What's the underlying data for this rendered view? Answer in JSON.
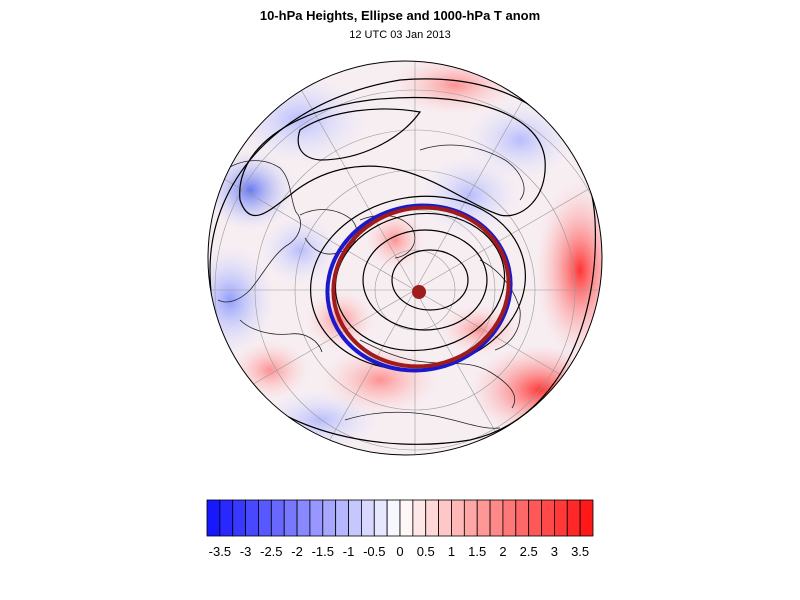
{
  "title": "10-hPa Heights, Ellipse and 1000-hPa T anom",
  "subtitle": "12 UTC 03 Jan 2013",
  "colors": {
    "ellipse_outer": "#1a1acc",
    "ellipse_inner": "#a01c1c",
    "center_marker": "#a01c1c",
    "contour": "#000000",
    "negative_max": "#1010ff",
    "positive_max": "#ff1010"
  },
  "map": {
    "projection": "north-polar-stereographic",
    "field": "1000-hPa temperature anomaly",
    "overlays": [
      "10-hPa height contours",
      "vortex ellipse",
      "ellipse center marker",
      "coastlines",
      "lat-lon grid"
    ]
  },
  "colorbar": {
    "levels": [
      -3.75,
      -3.5,
      -3.25,
      -3,
      -2.75,
      -2.5,
      -2.25,
      -2,
      -1.75,
      -1.5,
      -1.25,
      -1,
      -0.75,
      -0.5,
      -0.25,
      0,
      0.25,
      0.5,
      0.75,
      1,
      1.25,
      1.5,
      1.75,
      2,
      2.25,
      2.5,
      2.75,
      3,
      3.25,
      3.5,
      3.75
    ],
    "tick_labels": [
      "-3.5",
      "-3",
      "-2.5",
      "-2",
      "-1.5",
      "-1",
      "-0.5",
      "0",
      "0.5",
      "1",
      "1.5",
      "2",
      "2.5",
      "3",
      "3.5"
    ]
  }
}
